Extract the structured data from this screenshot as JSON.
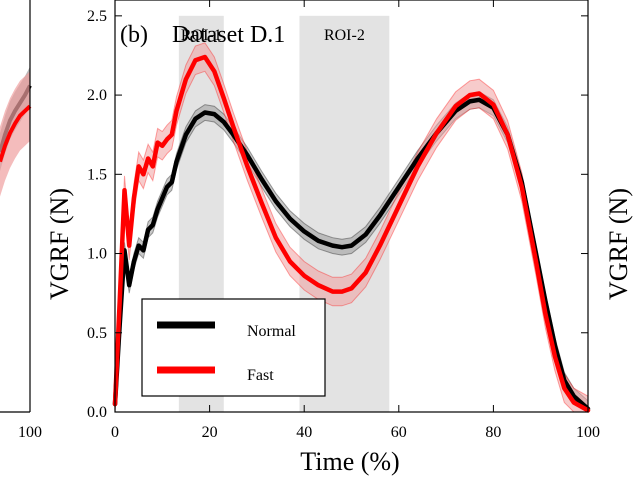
{
  "chart_data": {
    "type": "line",
    "panel_label": "(b)",
    "title": "Dataset D.1",
    "xlabel": "Time  (%)",
    "ylabel": "VGRF  (N)",
    "xlim": [
      0,
      100
    ],
    "ylim": [
      0,
      2.6
    ],
    "xticks": [
      "0",
      "20",
      "40",
      "60",
      "80",
      "100"
    ],
    "yticks": [
      "0.0",
      "0.5",
      "1.0",
      "1.5",
      "2.0",
      "2.5"
    ],
    "regions": [
      {
        "label": "ROI-1",
        "x_start": 13.5,
        "x_end": 23
      },
      {
        "label": "ROI-2",
        "x_start": 39,
        "x_end": 58
      }
    ],
    "legend_position": "lower-left",
    "series": [
      {
        "name": "Normal",
        "color": "#000000",
        "band_color": "#9a9a9a",
        "x": [
          0,
          1,
          2,
          3,
          4,
          5,
          6,
          7,
          8,
          9,
          10,
          11,
          12,
          13,
          15,
          17,
          19,
          21,
          23,
          25,
          28,
          31,
          34,
          37,
          40,
          43,
          46,
          48,
          50,
          53,
          56,
          60,
          64,
          68,
          72,
          75,
          77,
          80,
          83,
          86,
          89,
          91,
          93,
          95,
          97,
          100
        ],
        "y": [
          0.05,
          0.55,
          1.02,
          0.8,
          0.95,
          1.05,
          1.02,
          1.15,
          1.18,
          1.28,
          1.35,
          1.42,
          1.45,
          1.58,
          1.75,
          1.85,
          1.89,
          1.88,
          1.83,
          1.75,
          1.62,
          1.47,
          1.33,
          1.22,
          1.14,
          1.08,
          1.05,
          1.04,
          1.05,
          1.12,
          1.24,
          1.42,
          1.6,
          1.76,
          1.9,
          1.96,
          1.97,
          1.92,
          1.75,
          1.45,
          1.0,
          0.7,
          0.42,
          0.2,
          0.1,
          0.02
        ],
        "band": 0.05
      },
      {
        "name": "Fast",
        "color": "#ff0000",
        "band_color": "#f0a0a0",
        "x": [
          0,
          1,
          2,
          3,
          4,
          5,
          6,
          7,
          8,
          9,
          10,
          11,
          12,
          13,
          15,
          17,
          19,
          21,
          23,
          25,
          28,
          31,
          34,
          37,
          40,
          43,
          46,
          48,
          50,
          53,
          56,
          60,
          64,
          68,
          72,
          75,
          77,
          80,
          83,
          86,
          89,
          91,
          93,
          95,
          97,
          100
        ],
        "y": [
          0.05,
          0.7,
          1.4,
          1.05,
          1.35,
          1.55,
          1.5,
          1.6,
          1.55,
          1.7,
          1.68,
          1.72,
          1.75,
          1.9,
          2.1,
          2.22,
          2.24,
          2.15,
          1.98,
          1.8,
          1.55,
          1.32,
          1.1,
          0.95,
          0.86,
          0.8,
          0.76,
          0.76,
          0.78,
          0.88,
          1.05,
          1.3,
          1.55,
          1.76,
          1.93,
          2.0,
          2.01,
          1.94,
          1.75,
          1.42,
          0.95,
          0.62,
          0.35,
          0.15,
          0.06,
          0.01
        ],
        "band": 0.09
      }
    ],
    "left_panel": {
      "xtick": "100",
      "series": [
        {
          "name": "Normal",
          "color": "#000000",
          "band_color": "#9a9a9a",
          "y": [
            1.64,
            1.75,
            1.84,
            1.9,
            1.95,
            2.0,
            2.06
          ]
        },
        {
          "name": "Fast",
          "color": "#ff0000",
          "band_color": "#f0a0a0",
          "y": [
            1.58,
            1.68,
            1.76,
            1.82,
            1.87,
            1.9,
            1.93
          ]
        }
      ]
    },
    "right_panel": {
      "ylabel": "VGRF  (N)"
    }
  }
}
